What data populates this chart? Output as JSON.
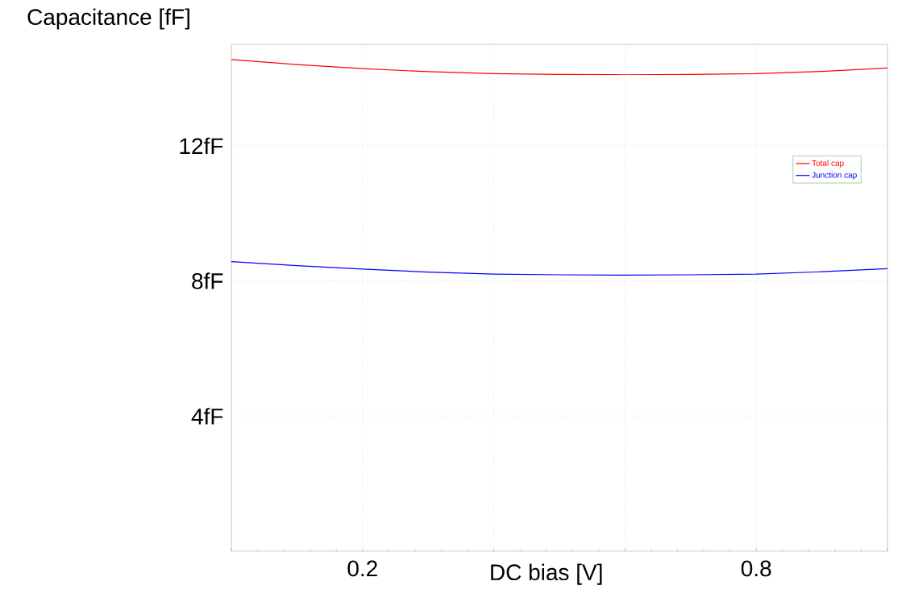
{
  "chart_data": {
    "type": "line",
    "ylabel": "Capacitance [fF]",
    "xlabel": "DC bias [V]",
    "x": [
      0,
      0.1,
      0.2,
      0.3,
      0.4,
      0.5,
      0.6,
      0.7,
      0.8,
      0.9,
      1.0
    ],
    "series": [
      {
        "name": "Total cap",
        "color": "#ff0000",
        "values": [
          14.55,
          14.4,
          14.28,
          14.19,
          14.13,
          14.11,
          14.1,
          14.11,
          14.13,
          14.2,
          14.3
        ]
      },
      {
        "name": "Junction cap",
        "color": "#0000ff",
        "values": [
          8.57,
          8.45,
          8.35,
          8.26,
          8.2,
          8.18,
          8.17,
          8.18,
          8.2,
          8.27,
          8.36
        ]
      }
    ],
    "xlim": [
      0,
      1
    ],
    "ylim": [
      0,
      15
    ],
    "xticks": [
      {
        "value": 0,
        "label": null
      },
      0.2,
      {
        "value": 0.4,
        "label": null
      },
      {
        "value": 0.6,
        "label": null
      },
      0.8,
      {
        "value": 1.0,
        "label": null
      }
    ],
    "yticks": [
      {
        "value": 4,
        "label": "4fF"
      },
      {
        "value": 8,
        "label": "8fF"
      },
      {
        "value": 12,
        "label": "12fF"
      }
    ],
    "grid": true,
    "legend": "right",
    "marker": "none",
    "line_style": "solid"
  }
}
